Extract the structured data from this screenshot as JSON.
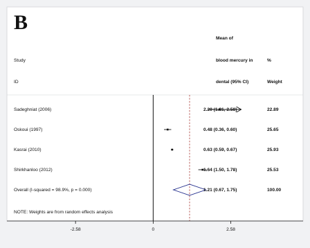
{
  "panel_letter": "B",
  "header": {
    "study": "Study",
    "id": "ID",
    "mean_line1": "Mean of",
    "mean_line2": "blood mercury in",
    "mean_line3": "dental (95% CI)",
    "pct": "%",
    "weight": "Weight"
  },
  "footnote": "NOTE: Weights are from random effects analysis",
  "chart_data": {
    "type": "forest",
    "x_axis": {
      "ticks": [
        -2.58,
        0,
        2.58
      ],
      "tick_labels": [
        "-2.58",
        "0",
        "2.58"
      ],
      "range": [
        -4.4,
        5.05
      ]
    },
    "reference_line": 0,
    "overall_line": 1.21,
    "studies": [
      {
        "study": "Sadeghniat (2006)",
        "estimate": 2.2,
        "ci": [
          1.81,
          2.58
        ],
        "ci_label": "2.20 (1.81, 2.58)",
        "weight": "22.89",
        "arrow_right": true
      },
      {
        "study": "Oskoui (1997)",
        "estimate": 0.48,
        "ci": [
          0.36,
          0.6
        ],
        "ci_label": "0.48 (0.36, 0.60)",
        "weight": "25.65",
        "arrow_right": false
      },
      {
        "study": "Kasrai (2010)",
        "estimate": 0.63,
        "ci": [
          0.59,
          0.67
        ],
        "ci_label": "0.63 (0.59, 0.67)",
        "weight": "25.93",
        "arrow_right": false
      },
      {
        "study": "Shirkhanloo (2012)",
        "estimate": 1.64,
        "ci": [
          1.5,
          1.78
        ],
        "ci_label": "1.64 (1.50, 1.78)",
        "weight": "25.53",
        "arrow_right": false
      }
    ],
    "overall": {
      "label": "Overall  (I-squared = 98.9%, p = 0.000)",
      "estimate": 1.21,
      "ci": [
        0.67,
        1.75
      ],
      "ci_label": "1.21 (0.67, 1.75)",
      "weight": "100.00"
    },
    "colors": {
      "background": "#f1f2f4",
      "panel": "#ffffff",
      "frame": "#d9dadd",
      "text": "#111111",
      "overall_line": "#b4504c",
      "diamond": "#1f2a8a"
    }
  }
}
